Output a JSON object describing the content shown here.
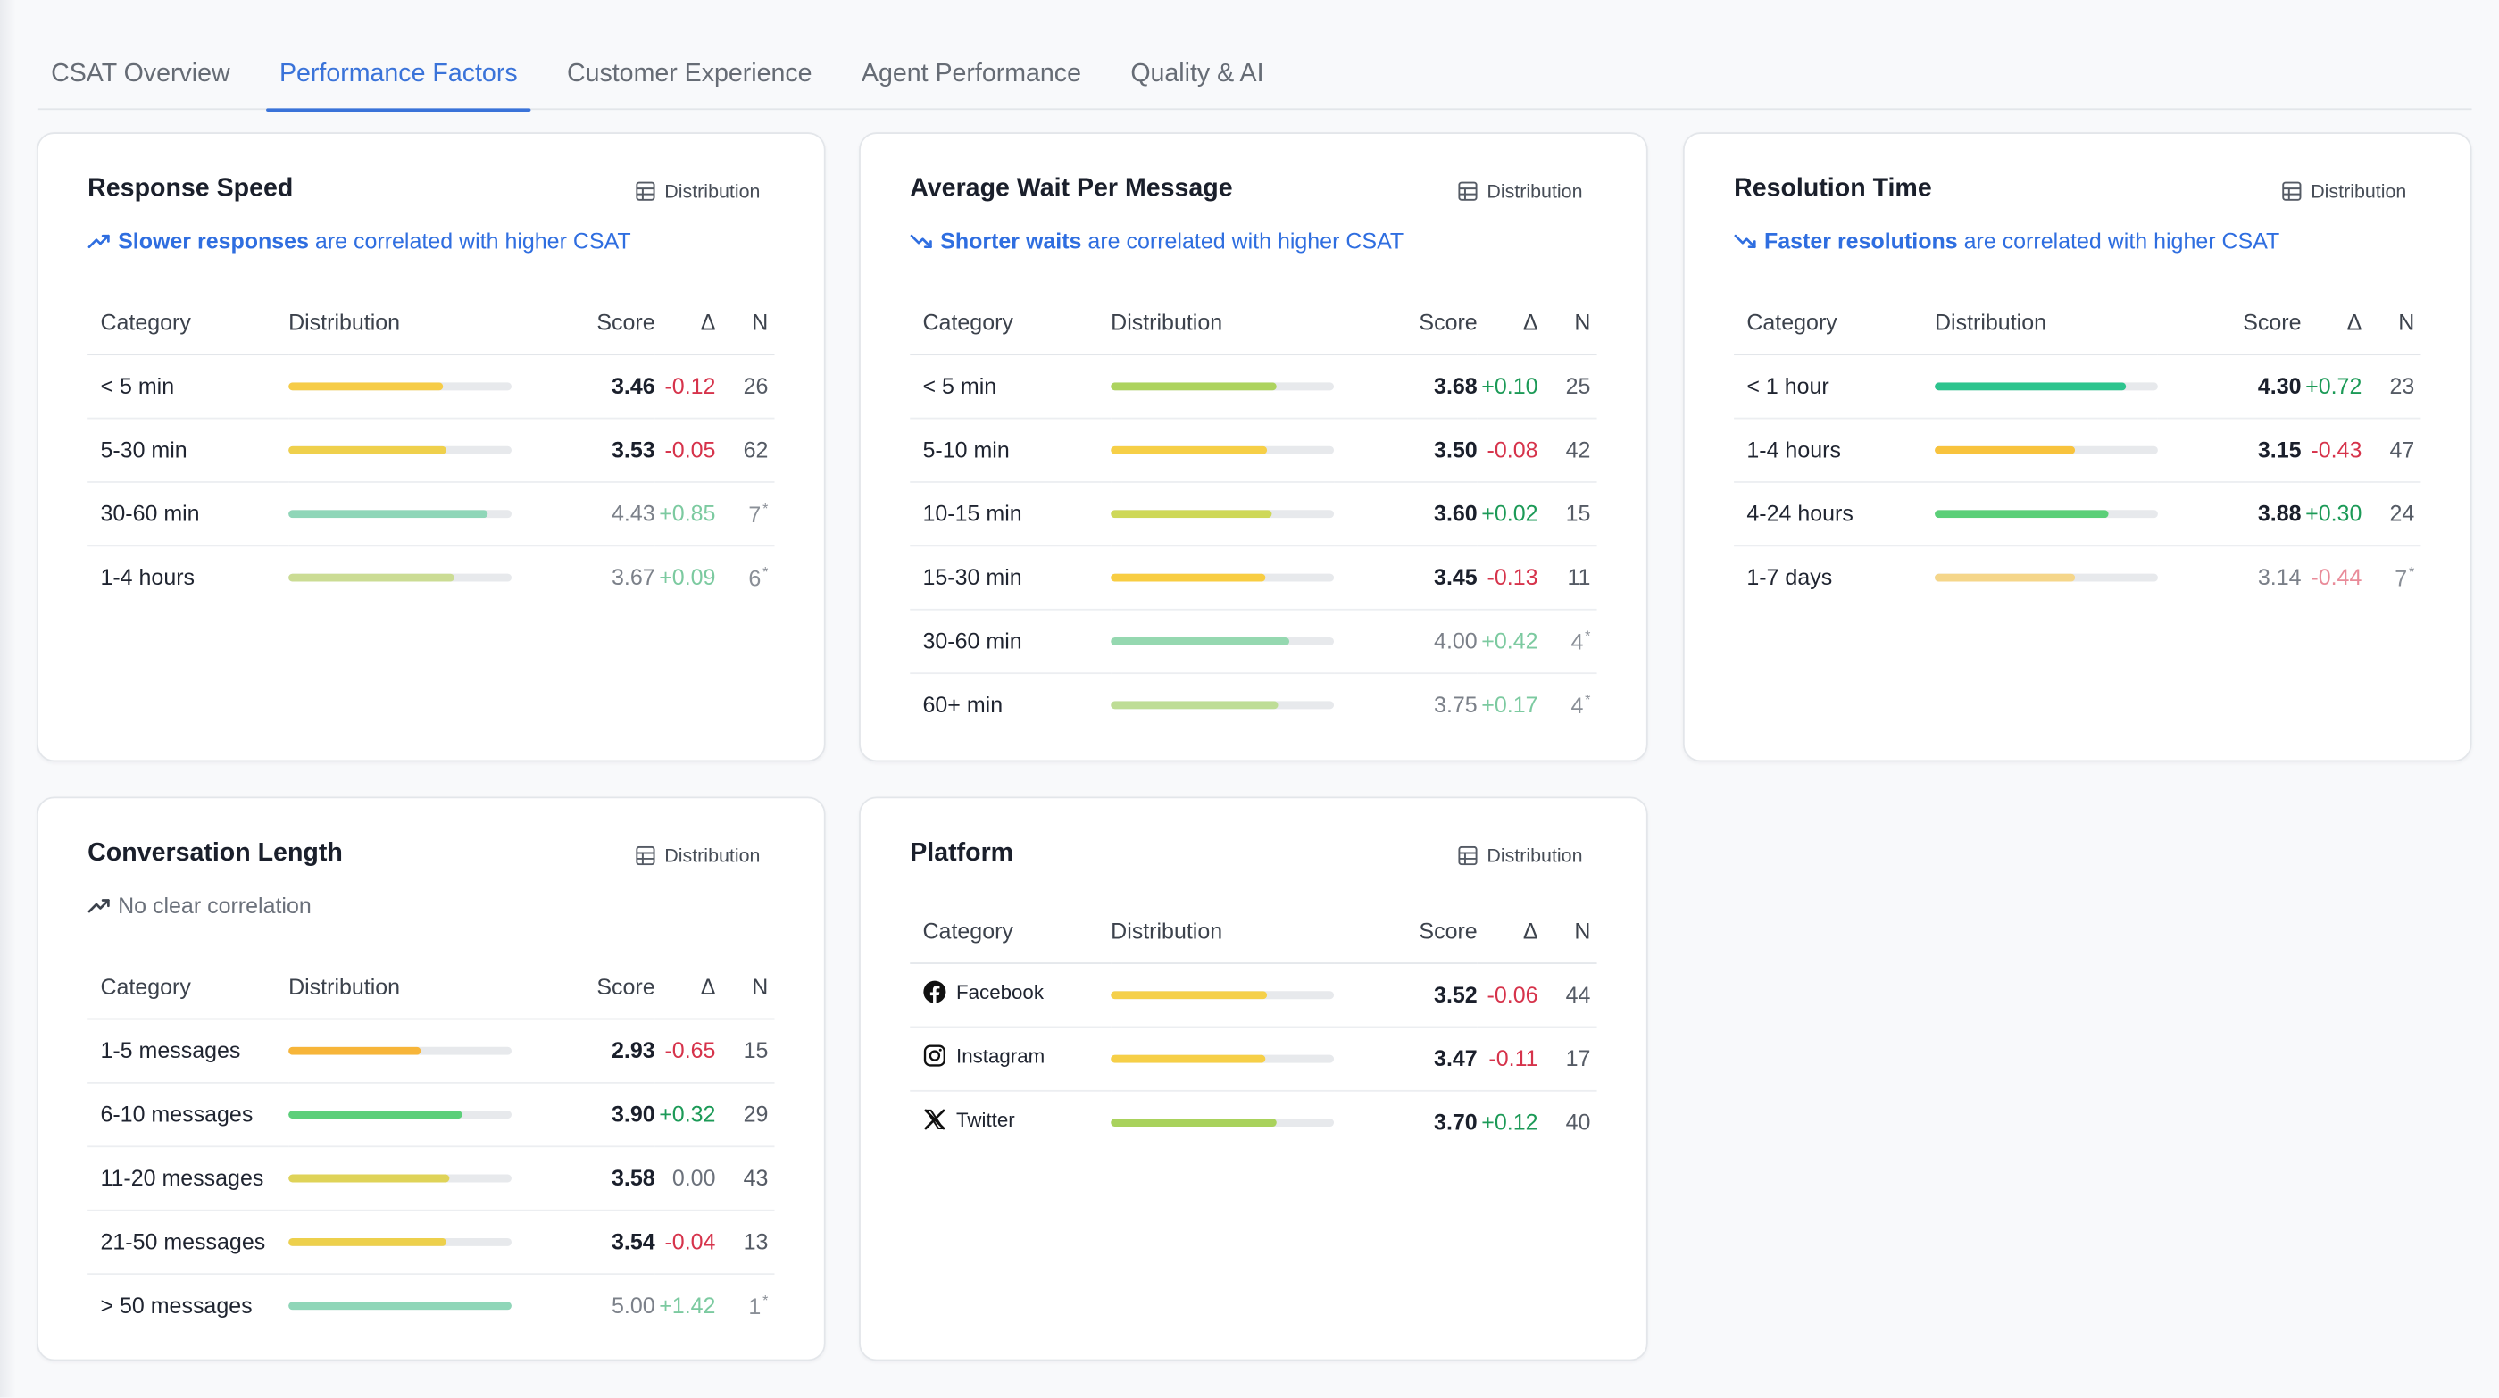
{
  "tabs": [
    {
      "label": "CSAT Overview",
      "active": false
    },
    {
      "label": "Performance Factors",
      "active": true
    },
    {
      "label": "Customer Experience",
      "active": false
    },
    {
      "label": "Agent Performance",
      "active": false
    },
    {
      "label": "Quality & AI",
      "active": false
    }
  ],
  "columns": {
    "category": "Category",
    "distribution": "Distribution",
    "score": "Score",
    "delta": "Δ",
    "n": "N"
  },
  "distribution_button": "Distribution",
  "colors": {
    "accent": "#3a73d9",
    "positive": "#1c9a57",
    "negative": "#d6334b"
  },
  "cards": {
    "response_speed": {
      "title": "Response Speed",
      "correlation": {
        "bold": "Slower responses",
        "rest": " are correlated with higher CSAT",
        "trend": "up"
      },
      "rows": [
        {
          "category": "< 5 min",
          "score": "3.46",
          "delta": "-0.12",
          "n": "26",
          "fill": 0.69,
          "color": "#f6cc47",
          "dim": false
        },
        {
          "category": "5-30 min",
          "score": "3.53",
          "delta": "-0.05",
          "n": "62",
          "fill": 0.71,
          "color": "#efd04c",
          "dim": false
        },
        {
          "category": "30-60 min",
          "score": "4.43",
          "delta": "+0.85",
          "n": "7",
          "fill": 0.89,
          "color": "#8fd6b8",
          "dim": true
        },
        {
          "category": "1-4 hours",
          "score": "3.67",
          "delta": "+0.09",
          "n": "6",
          "fill": 0.74,
          "color": "#cbdc94",
          "dim": true
        }
      ]
    },
    "avg_wait": {
      "title": "Average Wait Per Message",
      "correlation": {
        "bold": "Shorter waits",
        "rest": " are correlated with higher CSAT",
        "trend": "down"
      },
      "rows": [
        {
          "category": "< 5 min",
          "score": "3.68",
          "delta": "+0.10",
          "n": "25",
          "fill": 0.74,
          "color": "#add35e",
          "dim": false
        },
        {
          "category": "5-10 min",
          "score": "3.50",
          "delta": "-0.08",
          "n": "42",
          "fill": 0.7,
          "color": "#f6cf47",
          "dim": false
        },
        {
          "category": "10-15 min",
          "score": "3.60",
          "delta": "+0.02",
          "n": "15",
          "fill": 0.72,
          "color": "#ced858",
          "dim": false
        },
        {
          "category": "15-30 min",
          "score": "3.45",
          "delta": "-0.13",
          "n": "11",
          "fill": 0.69,
          "color": "#f8cd42",
          "dim": false
        },
        {
          "category": "30-60 min",
          "score": "4.00",
          "delta": "+0.42",
          "n": "4",
          "fill": 0.8,
          "color": "#95d8b0",
          "dim": true
        },
        {
          "category": "60+ min",
          "score": "3.75",
          "delta": "+0.17",
          "n": "4",
          "fill": 0.75,
          "color": "#bedd96",
          "dim": true
        }
      ]
    },
    "resolution_time": {
      "title": "Resolution Time",
      "correlation": {
        "bold": "Faster resolutions",
        "rest": " are correlated with higher CSAT",
        "trend": "down"
      },
      "rows": [
        {
          "category": "< 1 hour",
          "score": "4.30",
          "delta": "+0.72",
          "n": "23",
          "fill": 0.86,
          "color": "#2dc48e",
          "dim": false
        },
        {
          "category": "1-4 hours",
          "score": "3.15",
          "delta": "-0.43",
          "n": "47",
          "fill": 0.63,
          "color": "#f8c33d",
          "dim": false
        },
        {
          "category": "4-24 hours",
          "score": "3.88",
          "delta": "+0.30",
          "n": "24",
          "fill": 0.78,
          "color": "#5bcf78",
          "dim": false
        },
        {
          "category": "1-7 days",
          "score": "3.14",
          "delta": "-0.44",
          "n": "7",
          "fill": 0.63,
          "color": "#f5d68a",
          "dim": true
        }
      ]
    },
    "conversation_length": {
      "title": "Conversation Length",
      "correlation": {
        "bold": "",
        "rest": "No clear correlation",
        "trend": "up"
      },
      "rows": [
        {
          "category": "1-5 messages",
          "score": "2.93",
          "delta": "-0.65",
          "n": "15",
          "fill": 0.59,
          "color": "#f7b539",
          "dim": false
        },
        {
          "category": "6-10 messages",
          "score": "3.90",
          "delta": "+0.32",
          "n": "29",
          "fill": 0.78,
          "color": "#5ccf7a",
          "dim": false
        },
        {
          "category": "11-20 messages",
          "score": "3.58",
          "delta": "0.00",
          "n": "43",
          "fill": 0.72,
          "color": "#dfd358",
          "dim": false
        },
        {
          "category": "21-50 messages",
          "score": "3.54",
          "delta": "-0.04",
          "n": "13",
          "fill": 0.71,
          "color": "#edd04c",
          "dim": false
        },
        {
          "category": "> 50 messages",
          "score": "5.00",
          "delta": "+1.42",
          "n": "1",
          "fill": 1.0,
          "color": "#8fd6b8",
          "dim": true
        }
      ]
    },
    "platform": {
      "title": "Platform",
      "rows": [
        {
          "category": "Facebook",
          "icon": "facebook-icon",
          "score": "3.52",
          "delta": "-0.06",
          "n": "44",
          "fill": 0.7,
          "color": "#f5d04a",
          "dim": false
        },
        {
          "category": "Instagram",
          "icon": "instagram-icon",
          "score": "3.47",
          "delta": "-0.11",
          "n": "17",
          "fill": 0.69,
          "color": "#f6cf47",
          "dim": false
        },
        {
          "category": "Twitter",
          "icon": "twitter-x-icon",
          "score": "3.70",
          "delta": "+0.12",
          "n": "40",
          "fill": 0.74,
          "color": "#a9d25c",
          "dim": false
        }
      ]
    }
  }
}
